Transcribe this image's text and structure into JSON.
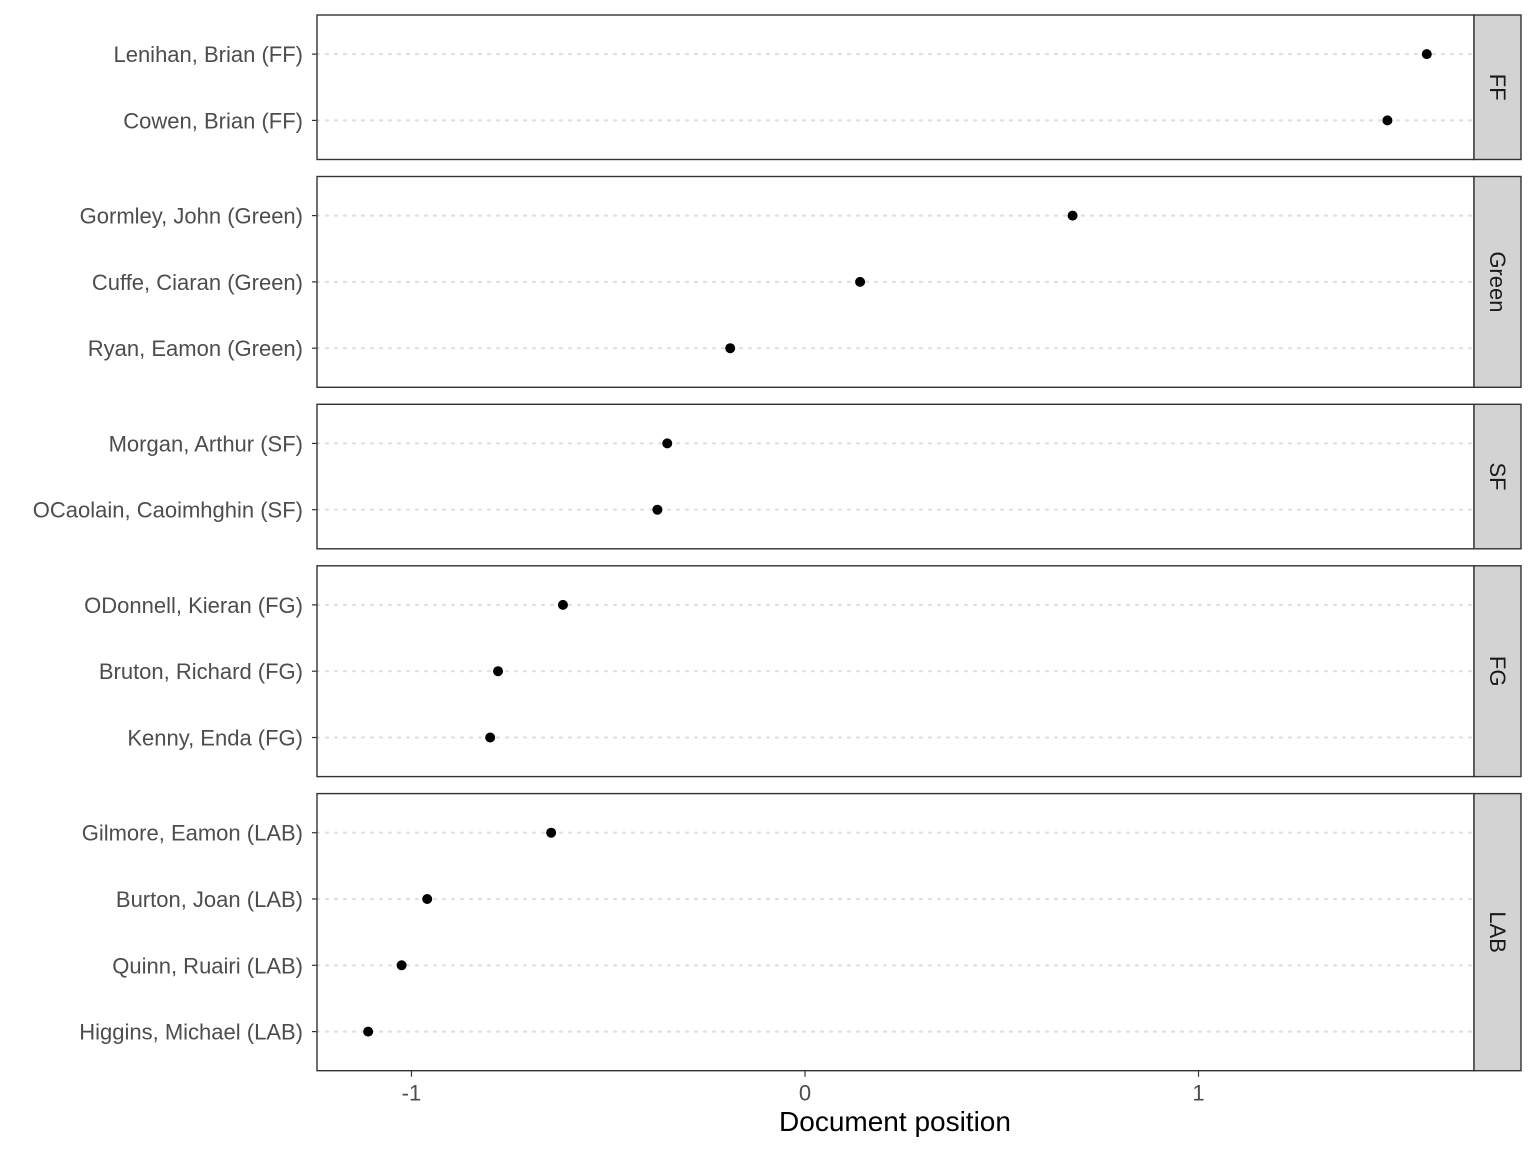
{
  "chart_data": {
    "type": "scatter",
    "xlabel": "Document position",
    "ylabel": "",
    "xlim": [
      -1.24,
      1.7
    ],
    "xticks": [
      -1,
      0,
      1
    ],
    "x_tick_labels": [
      "-1",
      "0",
      "1"
    ],
    "grid": "dotted horizontal gridlines at each row",
    "facet_layout": "rows, strip labels on the right",
    "colors": {
      "point": "#000000",
      "strip_fill": "#d3d3d3",
      "panel_border": "#333333",
      "grid": "#e0e0e0"
    },
    "facets": [
      {
        "label": "FF",
        "rows": [
          {
            "name": "Lenihan, Brian (FF)",
            "x": 1.58
          },
          {
            "name": "Cowen, Brian (FF)",
            "x": 1.48
          }
        ]
      },
      {
        "label": "Green",
        "rows": [
          {
            "name": "Gormley, John (Green)",
            "x": 0.68
          },
          {
            "name": "Cuffe, Ciaran (Green)",
            "x": 0.14
          },
          {
            "name": "Ryan, Eamon (Green)",
            "x": -0.19
          }
        ]
      },
      {
        "label": "SF",
        "rows": [
          {
            "name": "Morgan, Arthur (SF)",
            "x": -0.35
          },
          {
            "name": "OCaolain, Caoimhghin (SF)",
            "x": -0.375
          }
        ]
      },
      {
        "label": "FG",
        "rows": [
          {
            "name": "ODonnell, Kieran (FG)",
            "x": -0.615
          },
          {
            "name": "Bruton, Richard (FG)",
            "x": -0.78
          },
          {
            "name": "Kenny, Enda (FG)",
            "x": -0.8
          }
        ]
      },
      {
        "label": "LAB",
        "rows": [
          {
            "name": "Gilmore, Eamon (LAB)",
            "x": -0.645
          },
          {
            "name": "Burton, Joan (LAB)",
            "x": -0.96
          },
          {
            "name": "Quinn, Ruairi (LAB)",
            "x": -1.025
          },
          {
            "name": "Higgins, Michael (LAB)",
            "x": -1.11
          }
        ]
      }
    ]
  }
}
